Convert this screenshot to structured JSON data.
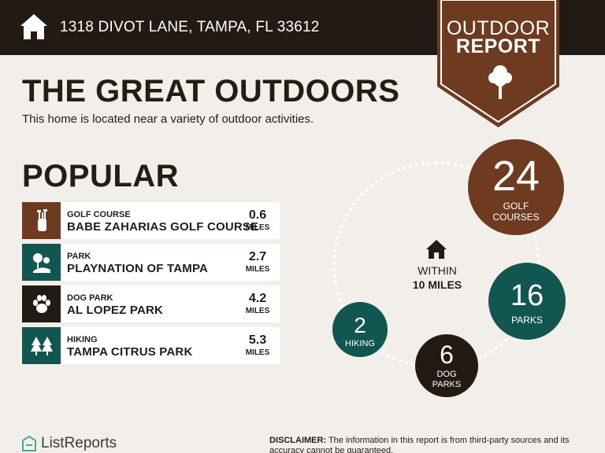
{
  "header": {
    "address": "1318 DIVOT LANE, TAMPA, FL 33612",
    "badge_line1": "OUTDOOR",
    "badge_line2": "REPORT",
    "icons": [
      "home-icon",
      "tree-icon"
    ]
  },
  "main": {
    "title": "THE GREAT OUTDOORS",
    "subtitle": "This home is located near a variety of outdoor activities.",
    "popular_heading": "POPULAR"
  },
  "popular": [
    {
      "category": "GOLF COURSE",
      "name": "BABE ZAHARIAS GOLF COURSE",
      "distance": "0.6",
      "unit": "MILES",
      "icon": "golf-bag-icon",
      "color": "#6e3b21"
    },
    {
      "category": "PARK",
      "name": "PLAYNATION OF TAMPA",
      "distance": "2.7",
      "unit": "MILES",
      "icon": "park-icon",
      "color": "#115650"
    },
    {
      "category": "DOG PARK",
      "name": "AL LOPEZ PARK",
      "distance": "4.2",
      "unit": "MILES",
      "icon": "paw-icon",
      "color": "#231a14"
    },
    {
      "category": "HIKING",
      "name": "TAMPA CITRUS PARK",
      "distance": "5.3",
      "unit": "MILES",
      "icon": "pine-trees-icon",
      "color": "#115650"
    }
  ],
  "summary": {
    "within_line1": "WITHIN",
    "within_line2": "10 MILES",
    "golf": {
      "count": "24",
      "label1": "GOLF",
      "label2": "COURSES",
      "color": "#6e3b21"
    },
    "parks": {
      "count": "16",
      "label1": "PARKS",
      "color": "#115650"
    },
    "hiking": {
      "count": "2",
      "label1": "HIKING",
      "color": "#115650"
    },
    "dog": {
      "count": "6",
      "label1": "DOG",
      "label2": "PARKS",
      "color": "#231a14"
    }
  },
  "footer": {
    "logo": "ListReports",
    "disclaimer_label": "DISCLAIMER:",
    "disclaimer_text": " The information in this report is from third-party sources and its accuracy cannot be guaranteed."
  },
  "colors": {
    "brown": "#6e3b21",
    "teal": "#115650",
    "dark": "#231a14",
    "background": "#f2efeb"
  }
}
